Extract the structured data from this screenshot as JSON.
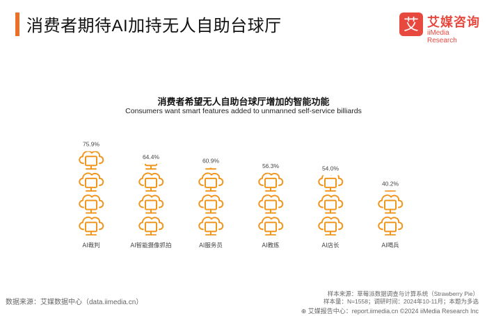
{
  "header": {
    "title": "消费者期待AI加持无人自助台球厅"
  },
  "logo": {
    "name": "艾媒咨询",
    "subname": "iiMedia Research",
    "mark_char": "艾",
    "color": "#e8493f"
  },
  "footer": {
    "source": "数据来源：艾媒数据中心（data.iimedia.cn）",
    "sample_source": "样本来源：草莓派数据调查与计算系统（Strawberry Pie）",
    "sample_info": "样本量：N=1558；调研时间：2024年10-11月；本题为多选",
    "report": "艾媒报告中心：report.iimedia.cn   ©2024  iiMedia Research  Inc"
  },
  "chart_data": {
    "type": "bar",
    "title": "消费者希望无人自助台球厅增加的智能功能",
    "subtitle": "Consumers want smart features added to unmanned self-service billiards",
    "categories": [
      "AI裁判",
      "AI智能摄像抓拍",
      "AI服务员",
      "AI教练",
      "AI店长",
      "AI喝兵"
    ],
    "values": [
      75.9,
      64.4,
      60.9,
      56.3,
      54.0,
      40.2
    ],
    "value_labels": [
      "75.9%",
      "64.4%",
      "60.9%",
      "56.3%",
      "54.0%",
      "40.2%"
    ],
    "unit": "%",
    "ylim": [
      0,
      100
    ],
    "icon": "cloud-monitor-icon",
    "color": "#f0961e",
    "grid": false,
    "legend": "none"
  }
}
